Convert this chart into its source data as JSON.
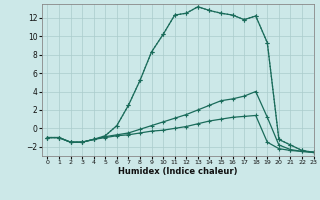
{
  "xlabel": "Humidex (Indice chaleur)",
  "bg_color": "#cce8e8",
  "grid_color": "#aacccc",
  "line_color": "#1a6b5a",
  "xlim": [
    -0.5,
    23
  ],
  "ylim": [
    -3.0,
    13.5
  ],
  "x_ticks": [
    0,
    1,
    2,
    3,
    4,
    5,
    6,
    7,
    8,
    9,
    10,
    11,
    12,
    13,
    14,
    15,
    16,
    17,
    18,
    19,
    20,
    21,
    22,
    23
  ],
  "y_ticks": [
    -2,
    0,
    2,
    4,
    6,
    8,
    10,
    12
  ],
  "series": [
    {
      "x": [
        0,
        1,
        2,
        3,
        4,
        5,
        6,
        7,
        8,
        9,
        10,
        11,
        12,
        13,
        14,
        15,
        16,
        17,
        18,
        19,
        20,
        21,
        22,
        23
      ],
      "y": [
        -1.0,
        -1.0,
        -1.5,
        -1.5,
        -1.2,
        -0.8,
        0.3,
        2.5,
        5.2,
        8.3,
        10.2,
        12.3,
        12.5,
        13.2,
        12.8,
        12.5,
        12.3,
        11.8,
        12.2,
        9.3,
        -1.2,
        -1.8,
        -2.4,
        -2.6
      ],
      "style": "dotted"
    },
    {
      "x": [
        0,
        1,
        2,
        3,
        4,
        5,
        6,
        7,
        8,
        9,
        10,
        11,
        12,
        13,
        14,
        15,
        16,
        17,
        18,
        19,
        20,
        21,
        22,
        23
      ],
      "y": [
        -1.0,
        -1.0,
        -1.5,
        -1.5,
        -1.2,
        -0.8,
        0.3,
        2.5,
        5.2,
        8.3,
        10.2,
        12.3,
        12.5,
        13.2,
        12.8,
        12.5,
        12.3,
        11.8,
        12.2,
        9.3,
        -1.2,
        -1.8,
        -2.4,
        -2.6
      ],
      "style": "solid"
    },
    {
      "x": [
        0,
        1,
        2,
        3,
        4,
        5,
        6,
        7,
        8,
        9,
        10,
        11,
        12,
        13,
        14,
        15,
        16,
        17,
        18,
        19,
        20,
        21,
        22,
        23
      ],
      "y": [
        -1.0,
        -1.0,
        -1.5,
        -1.5,
        -1.2,
        -0.9,
        -0.7,
        -0.5,
        -0.1,
        0.3,
        0.7,
        1.1,
        1.5,
        2.0,
        2.5,
        3.0,
        3.2,
        3.5,
        4.0,
        1.2,
        -1.8,
        -2.3,
        -2.5,
        -2.6
      ],
      "style": "solid"
    },
    {
      "x": [
        0,
        1,
        2,
        3,
        4,
        5,
        6,
        7,
        8,
        9,
        10,
        11,
        12,
        13,
        14,
        15,
        16,
        17,
        18,
        19,
        20,
        21,
        22,
        23
      ],
      "y": [
        -1.0,
        -1.0,
        -1.5,
        -1.5,
        -1.2,
        -1.0,
        -0.8,
        -0.7,
        -0.5,
        -0.3,
        -0.2,
        0.0,
        0.2,
        0.5,
        0.8,
        1.0,
        1.2,
        1.3,
        1.4,
        -1.5,
        -2.2,
        -2.4,
        -2.5,
        -2.6
      ],
      "style": "solid"
    }
  ]
}
